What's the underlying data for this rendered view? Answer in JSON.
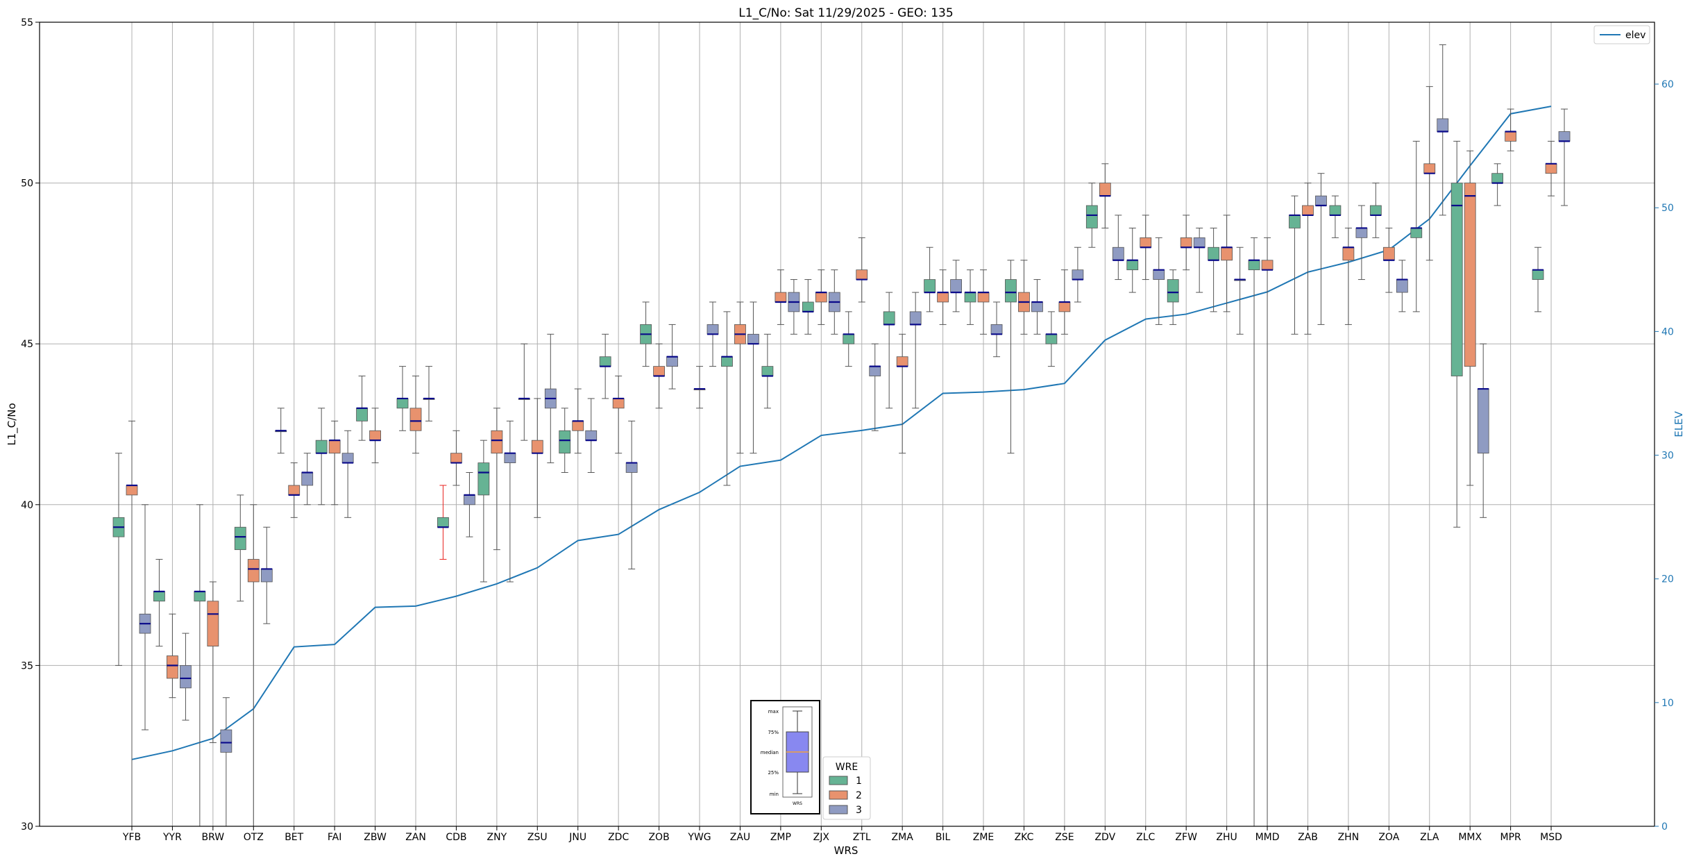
{
  "chart_data": {
    "type": "box",
    "title": "L1_C/No: Sat 11/29/2025 - GEO: 135",
    "xlabel": "WRS",
    "ylabel": "L1_C/No",
    "y2label": "ELEV",
    "ylim": [
      30,
      55
    ],
    "y2lim": [
      0,
      65
    ],
    "yticks": [
      30,
      35,
      40,
      45,
      50,
      55
    ],
    "y2ticks": [
      0,
      10,
      20,
      30,
      40,
      50,
      60
    ],
    "grid": true,
    "categories": [
      "YFB",
      "YYR",
      "BRW",
      "OTZ",
      "BET",
      "FAI",
      "ZBW",
      "ZAN",
      "CDB",
      "ZNY",
      "ZSU",
      "JNU",
      "ZDC",
      "ZOB",
      "YWG",
      "ZAU",
      "ZMP",
      "ZJX",
      "ZTL",
      "ZMA",
      "BIL",
      "ZME",
      "ZKC",
      "ZSE",
      "ZDV",
      "ZLC",
      "ZFW",
      "ZHU",
      "MMD",
      "ZAB",
      "ZHN",
      "ZOA",
      "ZLA",
      "MMX",
      "MPR",
      "MSD"
    ],
    "wre_colors": {
      "1": "#66b394",
      "2": "#e8926e",
      "3": "#8f9bc2"
    },
    "legend_wre": {
      "title": "WRE",
      "items": [
        "1",
        "2",
        "3"
      ]
    },
    "legend_elev": {
      "label": "elev",
      "color": "#1f77b4",
      "placement": "top-right"
    },
    "legend_key": {
      "labels": [
        "max",
        "75%",
        "median",
        "25%",
        "min"
      ],
      "caption": "WRS"
    },
    "boxes": [
      {
        "cat": "YFB",
        "wre": 1,
        "min": 35.0,
        "q1": 39.0,
        "med": 39.3,
        "q3": 39.6,
        "max": 41.6
      },
      {
        "cat": "YFB",
        "wre": 2,
        "min": 30.0,
        "q1": 40.3,
        "med": 40.6,
        "q3": 40.6,
        "max": 42.6
      },
      {
        "cat": "YFB",
        "wre": 3,
        "min": 33.0,
        "q1": 36.0,
        "med": 36.3,
        "q3": 36.6,
        "max": 40.0
      },
      {
        "cat": "YYR",
        "wre": 1,
        "min": 35.6,
        "q1": 37.0,
        "med": 37.3,
        "q3": 37.3,
        "max": 38.3
      },
      {
        "cat": "YYR",
        "wre": 2,
        "min": 34.0,
        "q1": 34.6,
        "med": 35.0,
        "q3": 35.3,
        "max": 36.6
      },
      {
        "cat": "YYR",
        "wre": 3,
        "min": 33.3,
        "q1": 34.3,
        "med": 34.6,
        "q3": 35.0,
        "max": 36.0
      },
      {
        "cat": "BRW",
        "wre": 1,
        "min": 30.0,
        "q1": 37.0,
        "med": 37.3,
        "q3": 37.3,
        "max": 40.0
      },
      {
        "cat": "BRW",
        "wre": 2,
        "min": 32.6,
        "q1": 35.6,
        "med": 36.6,
        "q3": 37.0,
        "max": 37.6
      },
      {
        "cat": "BRW",
        "wre": 3,
        "min": 30.0,
        "q1": 32.3,
        "med": 32.6,
        "q3": 33.0,
        "max": 34.0
      },
      {
        "cat": "OTZ",
        "wre": 1,
        "min": 37.0,
        "q1": 38.6,
        "med": 39.0,
        "q3": 39.3,
        "max": 40.3
      },
      {
        "cat": "OTZ",
        "wre": 2,
        "min": 30.0,
        "q1": 37.6,
        "med": 38.0,
        "q3": 38.3,
        "max": 40.0
      },
      {
        "cat": "OTZ",
        "wre": 3,
        "min": 36.3,
        "q1": 37.6,
        "med": 38.0,
        "q3": 38.0,
        "max": 39.3
      },
      {
        "cat": "BET",
        "wre": 1,
        "min": 41.6,
        "q1": 42.3,
        "med": 42.3,
        "q3": 42.3,
        "max": 43.0
      },
      {
        "cat": "BET",
        "wre": 2,
        "min": 39.6,
        "q1": 40.3,
        "med": 40.3,
        "q3": 40.6,
        "max": 41.3
      },
      {
        "cat": "BET",
        "wre": 3,
        "min": 40.0,
        "q1": 40.6,
        "med": 41.0,
        "q3": 41.0,
        "max": 41.6
      },
      {
        "cat": "FAI",
        "wre": 1,
        "min": 40.0,
        "q1": 41.6,
        "med": 41.6,
        "q3": 42.0,
        "max": 43.0
      },
      {
        "cat": "FAI",
        "wre": 2,
        "min": 40.0,
        "q1": 41.6,
        "med": 42.0,
        "q3": 42.0,
        "max": 42.6
      },
      {
        "cat": "FAI",
        "wre": 3,
        "min": 39.6,
        "q1": 41.3,
        "med": 41.3,
        "q3": 41.6,
        "max": 42.3
      },
      {
        "cat": "ZBW",
        "wre": 1,
        "min": 42.0,
        "q1": 42.6,
        "med": 43.0,
        "q3": 43.0,
        "max": 44.0
      },
      {
        "cat": "ZBW",
        "wre": 2,
        "min": 41.3,
        "q1": 42.0,
        "med": 42.0,
        "q3": 42.3,
        "max": 43.0
      },
      {
        "cat": "ZAN",
        "wre": 1,
        "min": 42.3,
        "q1": 43.0,
        "med": 43.3,
        "q3": 43.3,
        "max": 44.3
      },
      {
        "cat": "ZAN",
        "wre": 2,
        "min": 41.6,
        "q1": 42.3,
        "med": 42.6,
        "q3": 43.0,
        "max": 44.0
      },
      {
        "cat": "ZAN",
        "wre": 3,
        "min": 42.6,
        "q1": 43.3,
        "med": 43.3,
        "q3": 43.3,
        "max": 44.3
      },
      {
        "cat": "CDB",
        "wre": 1,
        "min": 38.3,
        "q1": 39.3,
        "med": 39.3,
        "q3": 39.6,
        "max": 40.6
      },
      {
        "cat": "CDB",
        "wre": 2,
        "min": 40.6,
        "q1": 41.3,
        "med": 41.3,
        "q3": 41.6,
        "max": 42.3
      },
      {
        "cat": "CDB",
        "wre": 3,
        "min": 39.0,
        "q1": 40.0,
        "med": 40.3,
        "q3": 40.3,
        "max": 41.0
      },
      {
        "cat": "ZNY",
        "wre": 1,
        "min": 37.6,
        "q1": 40.3,
        "med": 41.0,
        "q3": 41.3,
        "max": 42.0
      },
      {
        "cat": "ZNY",
        "wre": 2,
        "min": 38.6,
        "q1": 41.6,
        "med": 42.0,
        "q3": 42.3,
        "max": 43.0
      },
      {
        "cat": "ZNY",
        "wre": 3,
        "min": 37.6,
        "q1": 41.3,
        "med": 41.6,
        "q3": 41.6,
        "max": 42.6
      },
      {
        "cat": "ZSU",
        "wre": 1,
        "min": 42.0,
        "q1": 43.3,
        "med": 43.3,
        "q3": 43.3,
        "max": 45.0
      },
      {
        "cat": "ZSU",
        "wre": 2,
        "min": 39.6,
        "q1": 41.6,
        "med": 41.6,
        "q3": 42.0,
        "max": 43.3
      },
      {
        "cat": "ZSU",
        "wre": 3,
        "min": 41.3,
        "q1": 43.0,
        "med": 43.3,
        "q3": 43.6,
        "max": 45.3
      },
      {
        "cat": "JNU",
        "wre": 1,
        "min": 41.0,
        "q1": 41.6,
        "med": 42.0,
        "q3": 42.3,
        "max": 43.0
      },
      {
        "cat": "JNU",
        "wre": 2,
        "min": 41.6,
        "q1": 42.3,
        "med": 42.6,
        "q3": 42.6,
        "max": 43.6
      },
      {
        "cat": "JNU",
        "wre": 3,
        "min": 41.0,
        "q1": 42.0,
        "med": 42.0,
        "q3": 42.3,
        "max": 43.3
      },
      {
        "cat": "ZDC",
        "wre": 1,
        "min": 43.3,
        "q1": 44.3,
        "med": 44.3,
        "q3": 44.6,
        "max": 45.3
      },
      {
        "cat": "ZDC",
        "wre": 2,
        "min": 41.6,
        "q1": 43.0,
        "med": 43.3,
        "q3": 43.3,
        "max": 44.0
      },
      {
        "cat": "ZDC",
        "wre": 3,
        "min": 38.0,
        "q1": 41.0,
        "med": 41.3,
        "q3": 41.3,
        "max": 42.6
      },
      {
        "cat": "ZOB",
        "wre": 1,
        "min": 44.3,
        "q1": 45.0,
        "med": 45.3,
        "q3": 45.6,
        "max": 46.3
      },
      {
        "cat": "ZOB",
        "wre": 2,
        "min": 43.0,
        "q1": 44.0,
        "med": 44.0,
        "q3": 44.3,
        "max": 45.0
      },
      {
        "cat": "ZOB",
        "wre": 3,
        "min": 43.6,
        "q1": 44.3,
        "med": 44.6,
        "q3": 44.6,
        "max": 45.6
      },
      {
        "cat": "YWG",
        "wre": 2,
        "min": 43.0,
        "q1": 43.6,
        "med": 43.6,
        "q3": 43.6,
        "max": 44.3
      },
      {
        "cat": "YWG",
        "wre": 3,
        "min": 44.3,
        "q1": 45.3,
        "med": 45.3,
        "q3": 45.6,
        "max": 46.3
      },
      {
        "cat": "ZAU",
        "wre": 1,
        "min": 40.6,
        "q1": 44.3,
        "med": 44.6,
        "q3": 44.6,
        "max": 46.0
      },
      {
        "cat": "ZAU",
        "wre": 2,
        "min": 41.6,
        "q1": 45.0,
        "med": 45.3,
        "q3": 45.6,
        "max": 46.3
      },
      {
        "cat": "ZAU",
        "wre": 3,
        "min": 41.6,
        "q1": 45.0,
        "med": 45.0,
        "q3": 45.3,
        "max": 46.3
      },
      {
        "cat": "ZMP",
        "wre": 1,
        "min": 43.0,
        "q1": 44.0,
        "med": 44.0,
        "q3": 44.3,
        "max": 45.3
      },
      {
        "cat": "ZMP",
        "wre": 2,
        "min": 45.6,
        "q1": 46.3,
        "med": 46.3,
        "q3": 46.6,
        "max": 47.3
      },
      {
        "cat": "ZMP",
        "wre": 3,
        "min": 45.3,
        "q1": 46.0,
        "med": 46.3,
        "q3": 46.6,
        "max": 47.0
      },
      {
        "cat": "ZJX",
        "wre": 1,
        "min": 45.3,
        "q1": 46.0,
        "med": 46.0,
        "q3": 46.3,
        "max": 47.0
      },
      {
        "cat": "ZJX",
        "wre": 2,
        "min": 45.6,
        "q1": 46.3,
        "med": 46.6,
        "q3": 46.6,
        "max": 47.3
      },
      {
        "cat": "ZJX",
        "wre": 3,
        "min": 45.3,
        "q1": 46.0,
        "med": 46.3,
        "q3": 46.6,
        "max": 47.3
      },
      {
        "cat": "ZTL",
        "wre": 1,
        "min": 44.3,
        "q1": 45.0,
        "med": 45.3,
        "q3": 45.3,
        "max": 46.0
      },
      {
        "cat": "ZTL",
        "wre": 2,
        "min": 46.3,
        "q1": 47.0,
        "med": 47.0,
        "q3": 47.3,
        "max": 48.3
      },
      {
        "cat": "ZTL",
        "wre": 3,
        "min": 42.3,
        "q1": 44.0,
        "med": 44.3,
        "q3": 44.3,
        "max": 45.0
      },
      {
        "cat": "ZMA",
        "wre": 1,
        "min": 43.0,
        "q1": 45.6,
        "med": 45.6,
        "q3": 46.0,
        "max": 46.6
      },
      {
        "cat": "ZMA",
        "wre": 2,
        "min": 41.6,
        "q1": 44.3,
        "med": 44.3,
        "q3": 44.6,
        "max": 45.3
      },
      {
        "cat": "ZMA",
        "wre": 3,
        "min": 43.0,
        "q1": 45.6,
        "med": 45.6,
        "q3": 46.0,
        "max": 46.6
      },
      {
        "cat": "BIL",
        "wre": 1,
        "min": 46.0,
        "q1": 46.6,
        "med": 46.6,
        "q3": 47.0,
        "max": 48.0
      },
      {
        "cat": "BIL",
        "wre": 2,
        "min": 45.6,
        "q1": 46.3,
        "med": 46.6,
        "q3": 46.6,
        "max": 47.3
      },
      {
        "cat": "BIL",
        "wre": 3,
        "min": 46.0,
        "q1": 46.6,
        "med": 46.6,
        "q3": 47.0,
        "max": 47.6
      },
      {
        "cat": "ZME",
        "wre": 1,
        "min": 45.6,
        "q1": 46.3,
        "med": 46.6,
        "q3": 46.6,
        "max": 47.3
      },
      {
        "cat": "ZME",
        "wre": 2,
        "min": 45.3,
        "q1": 46.3,
        "med": 46.6,
        "q3": 46.6,
        "max": 47.3
      },
      {
        "cat": "ZME",
        "wre": 3,
        "min": 44.6,
        "q1": 45.3,
        "med": 45.3,
        "q3": 45.6,
        "max": 46.3
      },
      {
        "cat": "ZKC",
        "wre": 1,
        "min": 41.6,
        "q1": 46.3,
        "med": 46.6,
        "q3": 47.0,
        "max": 47.6
      },
      {
        "cat": "ZKC",
        "wre": 2,
        "min": 45.3,
        "q1": 46.0,
        "med": 46.3,
        "q3": 46.6,
        "max": 47.6
      },
      {
        "cat": "ZKC",
        "wre": 3,
        "min": 45.3,
        "q1": 46.0,
        "med": 46.3,
        "q3": 46.3,
        "max": 47.0
      },
      {
        "cat": "ZSE",
        "wre": 1,
        "min": 44.3,
        "q1": 45.0,
        "med": 45.3,
        "q3": 45.3,
        "max": 46.0
      },
      {
        "cat": "ZSE",
        "wre": 2,
        "min": 45.3,
        "q1": 46.0,
        "med": 46.3,
        "q3": 46.3,
        "max": 47.3
      },
      {
        "cat": "ZSE",
        "wre": 3,
        "min": 46.3,
        "q1": 47.0,
        "med": 47.0,
        "q3": 47.3,
        "max": 48.0
      },
      {
        "cat": "ZDV",
        "wre": 1,
        "min": 48.0,
        "q1": 48.6,
        "med": 49.0,
        "q3": 49.3,
        "max": 50.0
      },
      {
        "cat": "ZDV",
        "wre": 2,
        "min": 48.6,
        "q1": 49.6,
        "med": 49.6,
        "q3": 50.0,
        "max": 50.6
      },
      {
        "cat": "ZDV",
        "wre": 3,
        "min": 47.0,
        "q1": 47.6,
        "med": 47.6,
        "q3": 48.0,
        "max": 49.0
      },
      {
        "cat": "ZLC",
        "wre": 1,
        "min": 46.6,
        "q1": 47.3,
        "med": 47.6,
        "q3": 47.6,
        "max": 48.6
      },
      {
        "cat": "ZLC",
        "wre": 2,
        "min": 47.0,
        "q1": 48.0,
        "med": 48.0,
        "q3": 48.3,
        "max": 49.0
      },
      {
        "cat": "ZLC",
        "wre": 3,
        "min": 45.6,
        "q1": 47.0,
        "med": 47.3,
        "q3": 47.3,
        "max": 48.3
      },
      {
        "cat": "ZFW",
        "wre": 1,
        "min": 45.6,
        "q1": 46.3,
        "med": 46.6,
        "q3": 47.0,
        "max": 47.3
      },
      {
        "cat": "ZFW",
        "wre": 2,
        "min": 47.3,
        "q1": 48.0,
        "med": 48.0,
        "q3": 48.3,
        "max": 49.0
      },
      {
        "cat": "ZFW",
        "wre": 3,
        "min": 46.6,
        "q1": 48.0,
        "med": 48.0,
        "q3": 48.3,
        "max": 48.6
      },
      {
        "cat": "ZHU",
        "wre": 1,
        "min": 46.0,
        "q1": 47.6,
        "med": 47.6,
        "q3": 48.0,
        "max": 48.6
      },
      {
        "cat": "ZHU",
        "wre": 2,
        "min": 46.0,
        "q1": 47.6,
        "med": 48.0,
        "q3": 48.0,
        "max": 49.0
      },
      {
        "cat": "ZHU",
        "wre": 3,
        "min": 45.3,
        "q1": 47.0,
        "med": 47.0,
        "q3": 47.0,
        "max": 48.0
      },
      {
        "cat": "MMD",
        "wre": 1,
        "min": 30.0,
        "q1": 47.3,
        "med": 47.6,
        "q3": 47.6,
        "max": 48.3
      },
      {
        "cat": "MMD",
        "wre": 2,
        "min": 30.0,
        "q1": 47.3,
        "med": 47.3,
        "q3": 47.6,
        "max": 48.3
      },
      {
        "cat": "ZAB",
        "wre": 1,
        "min": 45.3,
        "q1": 48.6,
        "med": 49.0,
        "q3": 49.0,
        "max": 49.6
      },
      {
        "cat": "ZAB",
        "wre": 2,
        "min": 45.3,
        "q1": 49.0,
        "med": 49.0,
        "q3": 49.3,
        "max": 50.0
      },
      {
        "cat": "ZAB",
        "wre": 3,
        "min": 45.6,
        "q1": 49.3,
        "med": 49.3,
        "q3": 49.6,
        "max": 50.3
      },
      {
        "cat": "ZHN",
        "wre": 1,
        "min": 48.3,
        "q1": 49.0,
        "med": 49.0,
        "q3": 49.3,
        "max": 49.6
      },
      {
        "cat": "ZHN",
        "wre": 2,
        "min": 45.6,
        "q1": 47.6,
        "med": 48.0,
        "q3": 48.0,
        "max": 48.6
      },
      {
        "cat": "ZHN",
        "wre": 3,
        "min": 47.0,
        "q1": 48.3,
        "med": 48.6,
        "q3": 48.6,
        "max": 49.3
      },
      {
        "cat": "ZOA",
        "wre": 1,
        "min": 48.3,
        "q1": 49.0,
        "med": 49.0,
        "q3": 49.3,
        "max": 50.0
      },
      {
        "cat": "ZOA",
        "wre": 2,
        "min": 46.6,
        "q1": 47.6,
        "med": 47.6,
        "q3": 48.0,
        "max": 48.6
      },
      {
        "cat": "ZOA",
        "wre": 3,
        "min": 46.0,
        "q1": 46.6,
        "med": 47.0,
        "q3": 47.0,
        "max": 47.6
      },
      {
        "cat": "ZLA",
        "wre": 1,
        "min": 46.0,
        "q1": 48.3,
        "med": 48.6,
        "q3": 48.6,
        "max": 51.3
      },
      {
        "cat": "ZLA",
        "wre": 2,
        "min": 47.6,
        "q1": 50.3,
        "med": 50.3,
        "q3": 50.6,
        "max": 53.0
      },
      {
        "cat": "ZLA",
        "wre": 3,
        "min": 49.0,
        "q1": 51.6,
        "med": 51.6,
        "q3": 52.0,
        "max": 54.3
      },
      {
        "cat": "MMX",
        "wre": 1,
        "min": 39.3,
        "q1": 44.0,
        "med": 49.3,
        "q3": 50.0,
        "max": 51.3
      },
      {
        "cat": "MMX",
        "wre": 2,
        "min": 40.6,
        "q1": 44.3,
        "med": 49.6,
        "q3": 50.0,
        "max": 51.0
      },
      {
        "cat": "MMX",
        "wre": 3,
        "min": 39.6,
        "q1": 41.6,
        "med": 43.6,
        "q3": 43.6,
        "max": 45.0
      },
      {
        "cat": "MPR",
        "wre": 1,
        "min": 49.3,
        "q1": 50.0,
        "med": 50.0,
        "q3": 50.3,
        "max": 50.6
      },
      {
        "cat": "MPR",
        "wre": 2,
        "min": 51.0,
        "q1": 51.3,
        "med": 51.6,
        "q3": 51.6,
        "max": 52.3
      },
      {
        "cat": "MSD",
        "wre": 1,
        "min": 46.0,
        "q1": 47.0,
        "med": 47.3,
        "q3": 47.3,
        "max": 48.0
      },
      {
        "cat": "MSD",
        "wre": 2,
        "min": 49.6,
        "q1": 50.3,
        "med": 50.6,
        "q3": 50.6,
        "max": 51.3
      },
      {
        "cat": "MSD",
        "wre": 3,
        "min": 49.3,
        "q1": 51.3,
        "med": 51.3,
        "q3": 51.6,
        "max": 52.3
      }
    ],
    "elev": [
      5.4,
      6.1,
      7.1,
      9.5,
      14.5,
      14.7,
      17.7,
      17.8,
      18.6,
      19.6,
      20.9,
      23.1,
      23.6,
      25.6,
      27.0,
      29.1,
      29.6,
      31.6,
      32.0,
      32.5,
      35.0,
      35.1,
      35.3,
      35.8,
      39.3,
      41.0,
      41.4,
      42.3,
      43.2,
      44.8,
      45.6,
      46.6,
      49.1,
      53.4,
      57.6,
      58.2
    ]
  }
}
